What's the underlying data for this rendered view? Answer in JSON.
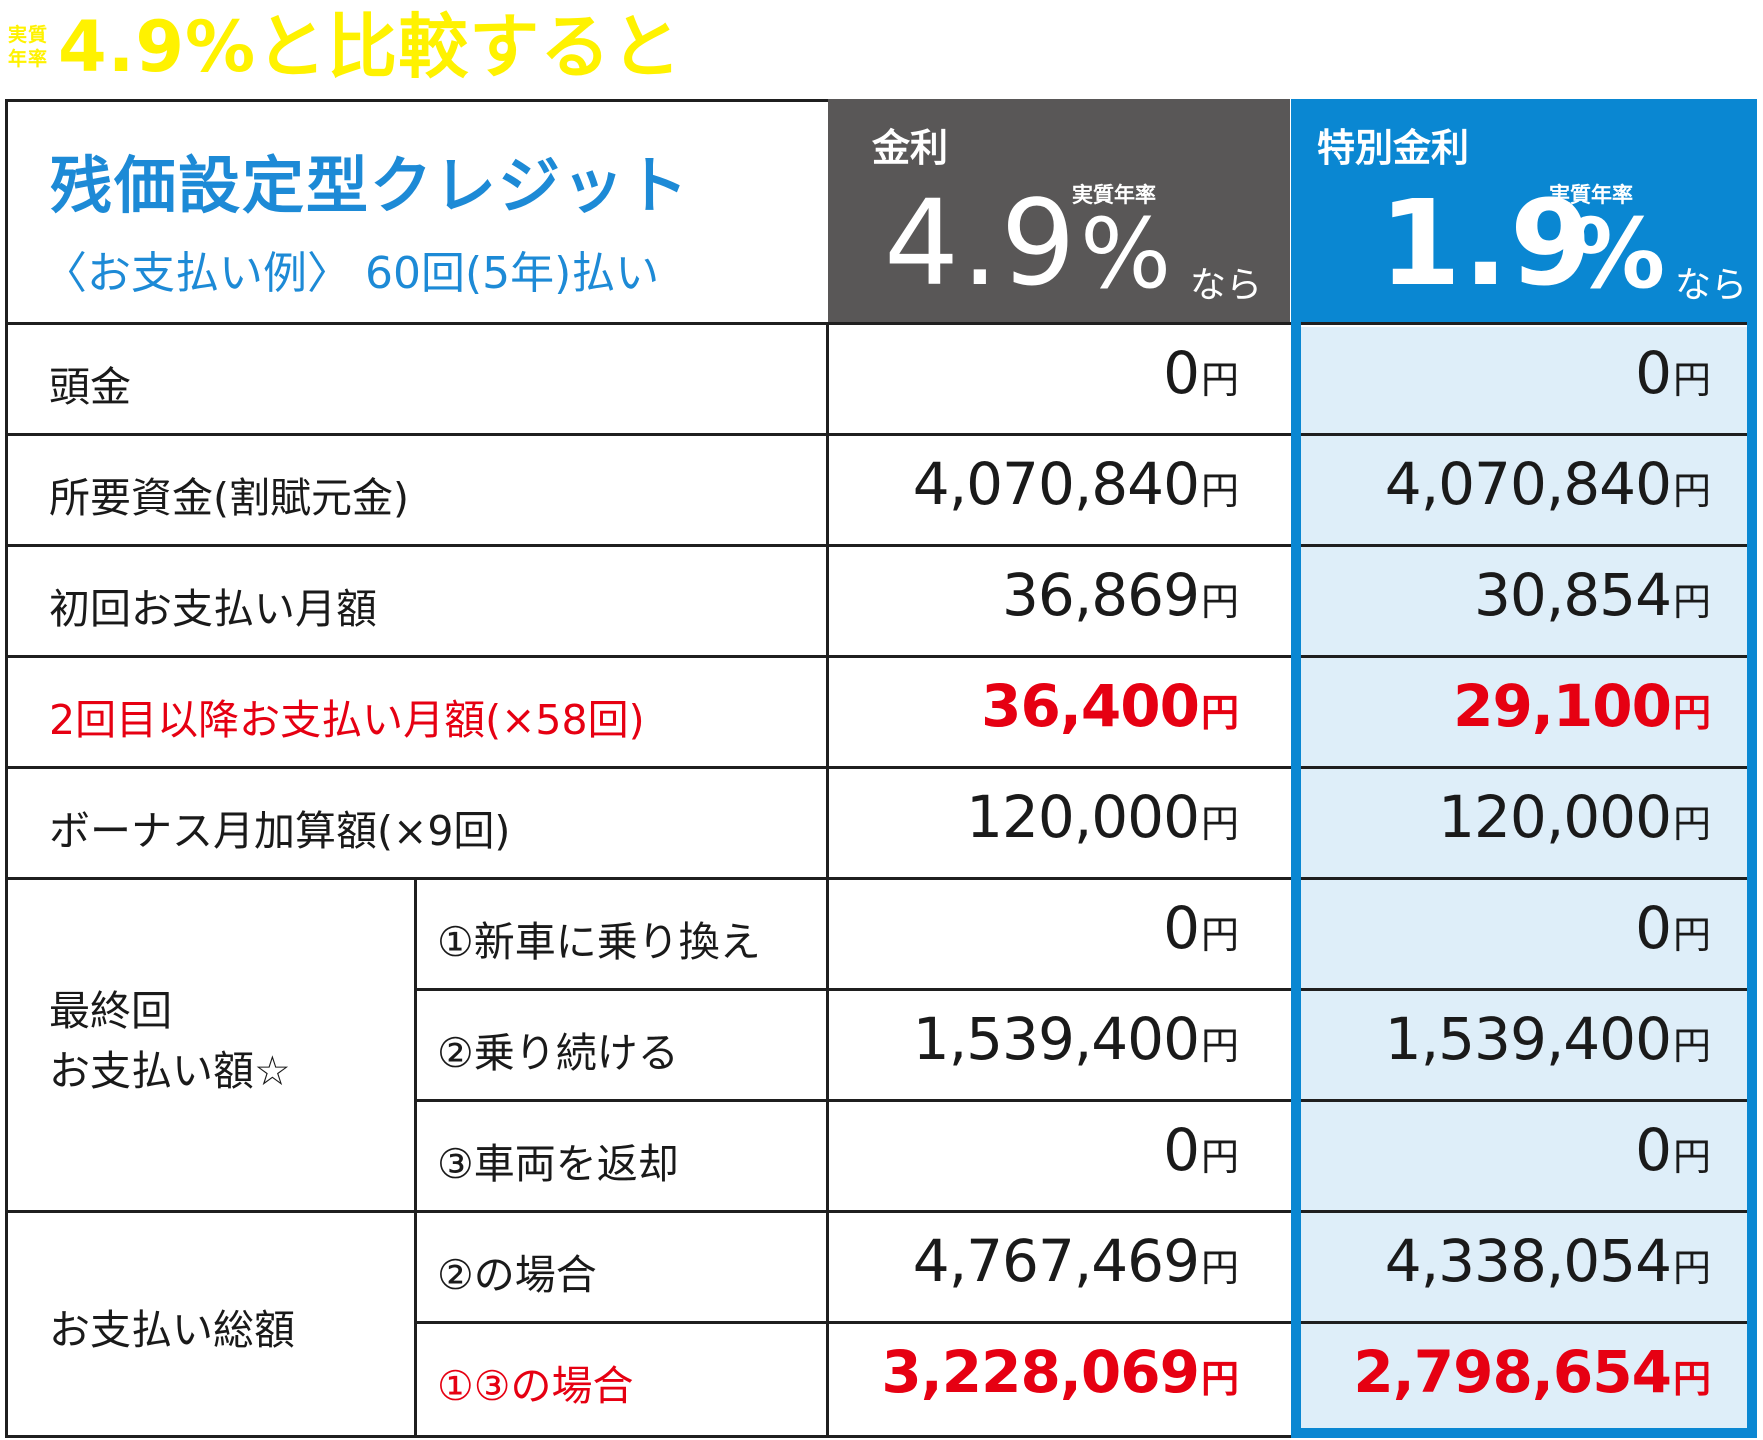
{
  "headline": {
    "small_top": "実質",
    "small_bottom": "年率",
    "text": "4.9%と比較すると"
  },
  "header": {
    "title": "残価設定型クレジット",
    "subtitle": "〈お支払い例〉 60回(5年)払い",
    "standard": {
      "label": "金利",
      "small": "実質年率",
      "rate": "4.9",
      "percent": "%",
      "suffix": "なら"
    },
    "special": {
      "label": "特別金利",
      "small": "実質年率",
      "rate": "1.9",
      "percent": "%",
      "suffix": "なら"
    }
  },
  "rows": [
    {
      "label": "頭金",
      "standard": "0",
      "special": "0",
      "unit": "円"
    },
    {
      "label": "所要資金(割賦元金)",
      "standard": "4,070,840",
      "special": "4,070,840",
      "unit": "円"
    },
    {
      "label": "初回お支払い月額",
      "standard": "36,869",
      "special": "30,854",
      "unit": "円"
    },
    {
      "label": "2回目以降お支払い月額(×58回)",
      "standard": "36,400",
      "special": "29,100",
      "unit": "円"
    },
    {
      "label": "ボーナス月加算額(×9回)",
      "standard": "120,000",
      "special": "120,000",
      "unit": "円"
    }
  ],
  "final_payment": {
    "label_line1": "最終回",
    "label_line2": "お支払い額☆",
    "options": [
      {
        "label": "①新車に乗り換え",
        "standard": "0",
        "special": "0",
        "unit": "円"
      },
      {
        "label": "②乗り続ける",
        "standard": "1,539,400",
        "special": "1,539,400",
        "unit": "円"
      },
      {
        "label": "③車両を返却",
        "standard": "0",
        "special": "0",
        "unit": "円"
      }
    ]
  },
  "total_payment": {
    "label": "お支払い総額",
    "options": [
      {
        "label": "②の場合",
        "standard": "4,767,469",
        "special": "4,338,054",
        "unit": "円"
      },
      {
        "label": "①③の場合",
        "standard": "3,228,069",
        "special": "2,798,654",
        "unit": "円"
      }
    ]
  },
  "colors": {
    "headline": "#fff200",
    "title_blue": "#1d8ad6",
    "header_gray": "#595757",
    "header_blue": "#0a87d2",
    "special_bg": "#deeef9",
    "highlight_red": "#e60012"
  }
}
